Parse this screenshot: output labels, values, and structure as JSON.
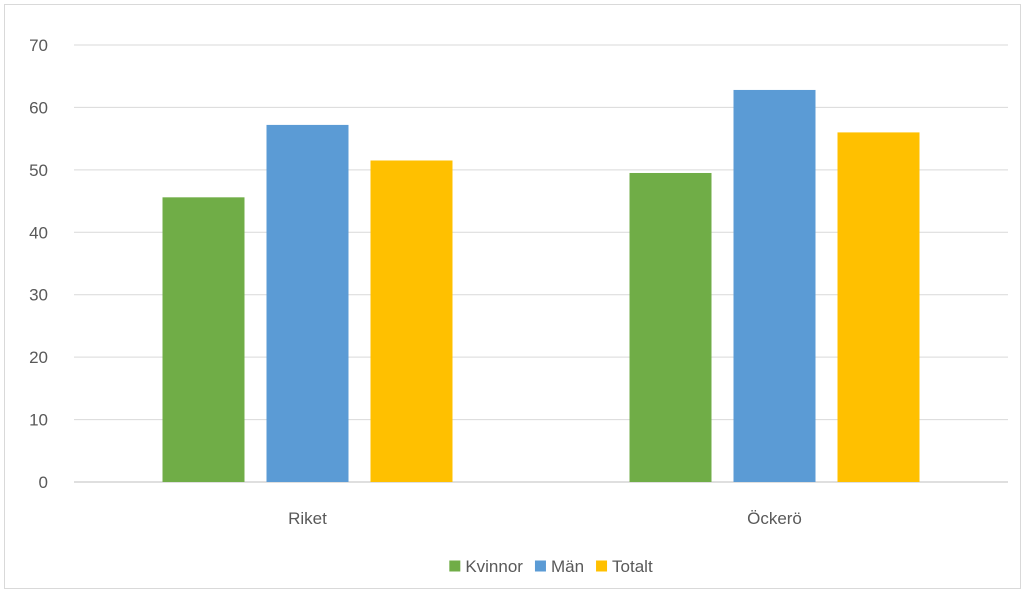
{
  "chart_data": {
    "type": "bar",
    "categories": [
      "Riket",
      "Öckerö"
    ],
    "series": [
      {
        "name": "Kvinnor",
        "values": [
          45.6,
          49.5
        ],
        "color": "#70ad47"
      },
      {
        "name": "Män",
        "values": [
          57.2,
          62.8
        ],
        "color": "#5b9bd5"
      },
      {
        "name": "Totalt",
        "values": [
          51.5,
          56.0
        ],
        "color": "#ffc000"
      }
    ],
    "yticks": [
      "0",
      "10",
      "20",
      "30",
      "40",
      "50",
      "60",
      "70"
    ],
    "ylim": [
      0,
      70
    ],
    "title": "",
    "xlabel": "",
    "ylabel": "",
    "grid": true,
    "legend_position": "bottom",
    "gridline_color": "#d9d9d9",
    "axis_color": "#bfbfbf"
  }
}
